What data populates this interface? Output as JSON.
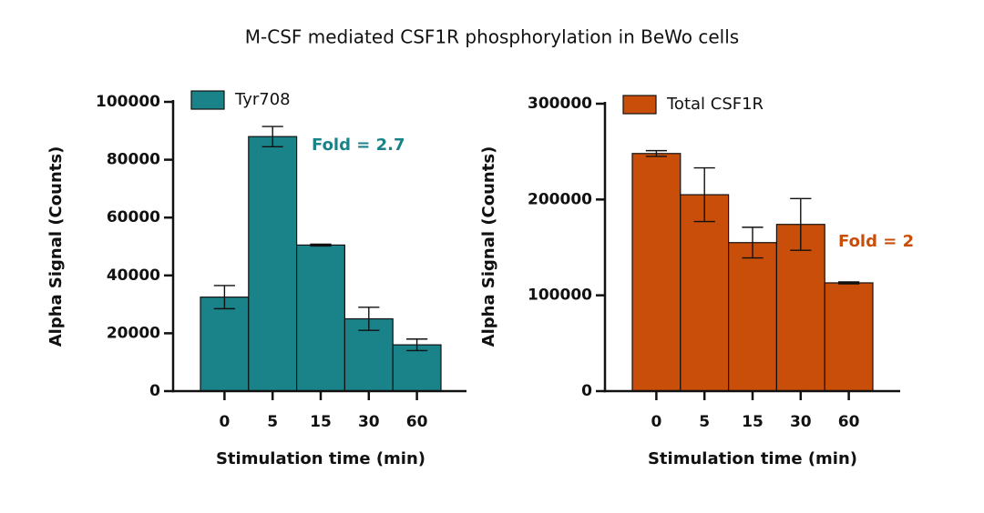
{
  "title": "M-CSF mediated CSF1R phosphorylation in BeWo cells",
  "chart_data": [
    {
      "type": "bar",
      "xlabel": "Stimulation time (min)",
      "ylabel": "Alpha Signal (Counts)",
      "categories": [
        "0",
        "5",
        "15",
        "30",
        "60"
      ],
      "series": [
        {
          "name": "Tyr708",
          "color": "#1a8389",
          "values": [
            32500,
            88000,
            50500,
            25000,
            16000
          ],
          "errors": [
            4000,
            3500,
            300,
            4000,
            2000
          ]
        }
      ],
      "ylim": [
        0,
        100000
      ],
      "yticks": [
        0,
        20000,
        40000,
        60000,
        80000,
        100000
      ],
      "annotation": "Fold = 2.7"
    },
    {
      "type": "bar",
      "xlabel": "Stimulation time (min)",
      "ylabel": "Alpha Signal (Counts)",
      "categories": [
        "0",
        "5",
        "15",
        "30",
        "60"
      ],
      "series": [
        {
          "name": "Total CSF1R",
          "color": "#c84e0a",
          "values": [
            248000,
            205000,
            155000,
            174000,
            113000
          ],
          "errors": [
            3000,
            28000,
            16000,
            27000,
            1000
          ]
        }
      ],
      "ylim": [
        0,
        300000
      ],
      "yticks": [
        0,
        100000,
        200000,
        300000
      ],
      "annotation": "Fold = 2"
    }
  ]
}
